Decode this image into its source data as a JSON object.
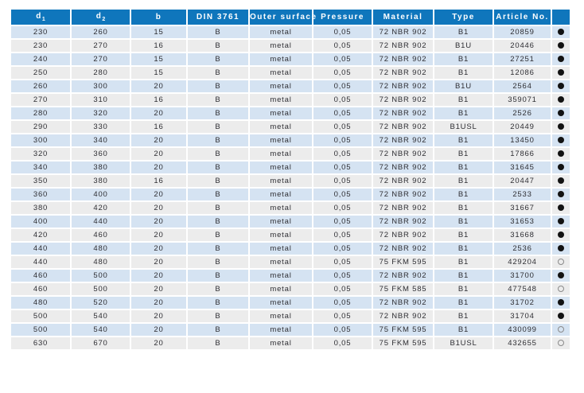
{
  "colors": {
    "header_bg": "#0f76bc",
    "header_text": "#ffffff",
    "row_blue": "#d5e3f2",
    "row_gray": "#ececec",
    "body_text": "#2e2e33",
    "dot_filled": "#121212",
    "dot_open_border": "#8a8a8a"
  },
  "table": {
    "headers": [
      {
        "label": "d",
        "sub": "1"
      },
      {
        "label": "d",
        "sub": "2"
      },
      {
        "label": "b",
        "sub": ""
      },
      {
        "label": "DIN 3761",
        "sub": ""
      },
      {
        "label": "Outer surface",
        "sub": ""
      },
      {
        "label": "Pressure",
        "sub": ""
      },
      {
        "label": "Material",
        "sub": ""
      },
      {
        "label": "Type",
        "sub": ""
      },
      {
        "label": "Article No.",
        "sub": ""
      },
      {
        "label": "",
        "sub": ""
      }
    ],
    "rows": [
      {
        "d1": "230",
        "d2": "260",
        "b": "15",
        "din": "B",
        "outer_surface": "metal",
        "pressure": "0,05",
        "material": "72 NBR 902",
        "type": "B1",
        "article_no": "20859",
        "dot": "filled"
      },
      {
        "d1": "230",
        "d2": "270",
        "b": "16",
        "din": "B",
        "outer_surface": "metal",
        "pressure": "0,05",
        "material": "72 NBR 902",
        "type": "B1U",
        "article_no": "20446",
        "dot": "filled"
      },
      {
        "d1": "240",
        "d2": "270",
        "b": "15",
        "din": "B",
        "outer_surface": "metal",
        "pressure": "0,05",
        "material": "72 NBR 902",
        "type": "B1",
        "article_no": "27251",
        "dot": "filled"
      },
      {
        "d1": "250",
        "d2": "280",
        "b": "15",
        "din": "B",
        "outer_surface": "metal",
        "pressure": "0,05",
        "material": "72 NBR 902",
        "type": "B1",
        "article_no": "12086",
        "dot": "filled"
      },
      {
        "d1": "260",
        "d2": "300",
        "b": "20",
        "din": "B",
        "outer_surface": "metal",
        "pressure": "0,05",
        "material": "72 NBR 902",
        "type": "B1U",
        "article_no": "2564",
        "dot": "filled"
      },
      {
        "d1": "270",
        "d2": "310",
        "b": "16",
        "din": "B",
        "outer_surface": "metal",
        "pressure": "0,05",
        "material": "72 NBR 902",
        "type": "B1",
        "article_no": "359071",
        "dot": "filled"
      },
      {
        "d1": "280",
        "d2": "320",
        "b": "20",
        "din": "B",
        "outer_surface": "metal",
        "pressure": "0,05",
        "material": "72 NBR 902",
        "type": "B1",
        "article_no": "2526",
        "dot": "filled"
      },
      {
        "d1": "290",
        "d2": "330",
        "b": "16",
        "din": "B",
        "outer_surface": "metal",
        "pressure": "0,05",
        "material": "72 NBR 902",
        "type": "B1USL",
        "article_no": "20449",
        "dot": "filled"
      },
      {
        "d1": "300",
        "d2": "340",
        "b": "20",
        "din": "B",
        "outer_surface": "metal",
        "pressure": "0,05",
        "material": "72 NBR 902",
        "type": "B1",
        "article_no": "13450",
        "dot": "filled"
      },
      {
        "d1": "320",
        "d2": "360",
        "b": "20",
        "din": "B",
        "outer_surface": "metal",
        "pressure": "0,05",
        "material": "72 NBR 902",
        "type": "B1",
        "article_no": "17866",
        "dot": "filled"
      },
      {
        "d1": "340",
        "d2": "380",
        "b": "20",
        "din": "B",
        "outer_surface": "metal",
        "pressure": "0,05",
        "material": "72 NBR 902",
        "type": "B1",
        "article_no": "31645",
        "dot": "filled"
      },
      {
        "d1": "350",
        "d2": "380",
        "b": "16",
        "din": "B",
        "outer_surface": "metal",
        "pressure": "0,05",
        "material": "72 NBR 902",
        "type": "B1",
        "article_no": "20447",
        "dot": "filled"
      },
      {
        "d1": "360",
        "d2": "400",
        "b": "20",
        "din": "B",
        "outer_surface": "metal",
        "pressure": "0,05",
        "material": "72 NBR 902",
        "type": "B1",
        "article_no": "2533",
        "dot": "filled"
      },
      {
        "d1": "380",
        "d2": "420",
        "b": "20",
        "din": "B",
        "outer_surface": "metal",
        "pressure": "0,05",
        "material": "72 NBR 902",
        "type": "B1",
        "article_no": "31667",
        "dot": "filled"
      },
      {
        "d1": "400",
        "d2": "440",
        "b": "20",
        "din": "B",
        "outer_surface": "metal",
        "pressure": "0,05",
        "material": "72 NBR 902",
        "type": "B1",
        "article_no": "31653",
        "dot": "filled"
      },
      {
        "d1": "420",
        "d2": "460",
        "b": "20",
        "din": "B",
        "outer_surface": "metal",
        "pressure": "0,05",
        "material": "72 NBR 902",
        "type": "B1",
        "article_no": "31668",
        "dot": "filled"
      },
      {
        "d1": "440",
        "d2": "480",
        "b": "20",
        "din": "B",
        "outer_surface": "metal",
        "pressure": "0,05",
        "material": "72 NBR 902",
        "type": "B1",
        "article_no": "2536",
        "dot": "filled"
      },
      {
        "d1": "440",
        "d2": "480",
        "b": "20",
        "din": "B",
        "outer_surface": "metal",
        "pressure": "0,05",
        "material": "75 FKM 595",
        "type": "B1",
        "article_no": "429204",
        "dot": "open"
      },
      {
        "d1": "460",
        "d2": "500",
        "b": "20",
        "din": "B",
        "outer_surface": "metal",
        "pressure": "0,05",
        "material": "72 NBR 902",
        "type": "B1",
        "article_no": "31700",
        "dot": "filled"
      },
      {
        "d1": "460",
        "d2": "500",
        "b": "20",
        "din": "B",
        "outer_surface": "metal",
        "pressure": "0,05",
        "material": "75 FKM 585",
        "type": "B1",
        "article_no": "477548",
        "dot": "open"
      },
      {
        "d1": "480",
        "d2": "520",
        "b": "20",
        "din": "B",
        "outer_surface": "metal",
        "pressure": "0,05",
        "material": "72 NBR 902",
        "type": "B1",
        "article_no": "31702",
        "dot": "filled"
      },
      {
        "d1": "500",
        "d2": "540",
        "b": "20",
        "din": "B",
        "outer_surface": "metal",
        "pressure": "0,05",
        "material": "72 NBR 902",
        "type": "B1",
        "article_no": "31704",
        "dot": "filled"
      },
      {
        "d1": "500",
        "d2": "540",
        "b": "20",
        "din": "B",
        "outer_surface": "metal",
        "pressure": "0,05",
        "material": "75 FKM 595",
        "type": "B1",
        "article_no": "430099",
        "dot": "open"
      },
      {
        "d1": "630",
        "d2": "670",
        "b": "20",
        "din": "B",
        "outer_surface": "metal",
        "pressure": "0,05",
        "material": "75 FKM 595",
        "type": "B1USL",
        "article_no": "432655",
        "dot": "open"
      }
    ]
  }
}
